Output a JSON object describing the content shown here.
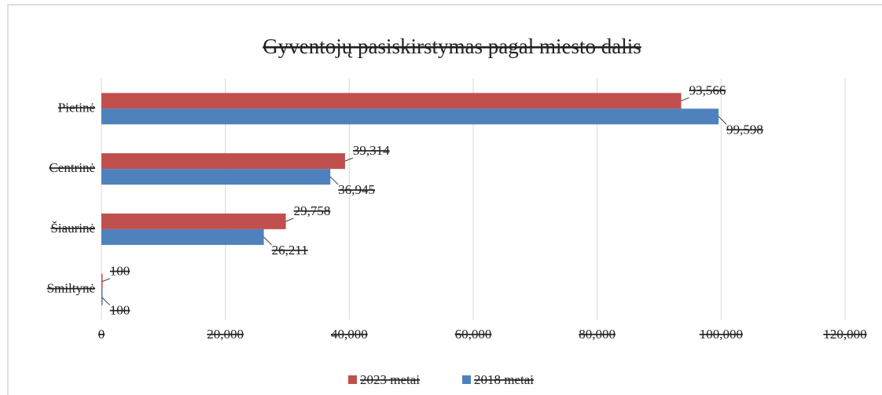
{
  "chart_data": {
    "type": "bar",
    "orientation": "horizontal",
    "title": "Gyventojų pasiskirstymas pagal miesto dalis",
    "categories": [
      "Pietinė",
      "Centrinė",
      "Šiaurinė",
      "Smiltynė"
    ],
    "series": [
      {
        "name": "2023 metai",
        "color": "#c0504d",
        "values": [
          93566,
          39314,
          29758,
          100
        ],
        "value_labels": [
          "93,566",
          "39,314",
          "29,758",
          "100"
        ]
      },
      {
        "name": "2018 metai",
        "color": "#4f81bd",
        "values": [
          99598,
          36945,
          26211,
          100
        ],
        "value_labels": [
          "99,598",
          "36,945",
          "26,211",
          "100"
        ]
      }
    ],
    "xlim": [
      0,
      120000
    ],
    "xticks": [
      0,
      {
        "value": 20000,
        "label": "20,000"
      },
      {
        "value": 40000,
        "label": "40,000"
      },
      {
        "value": 60000,
        "label": "60,000"
      },
      {
        "value": 80000,
        "label": "80,000"
      },
      {
        "value": 100000,
        "label": "100,000"
      },
      {
        "value": 120000,
        "label": "120,000"
      }
    ],
    "grid": true,
    "legend": "bottom"
  }
}
